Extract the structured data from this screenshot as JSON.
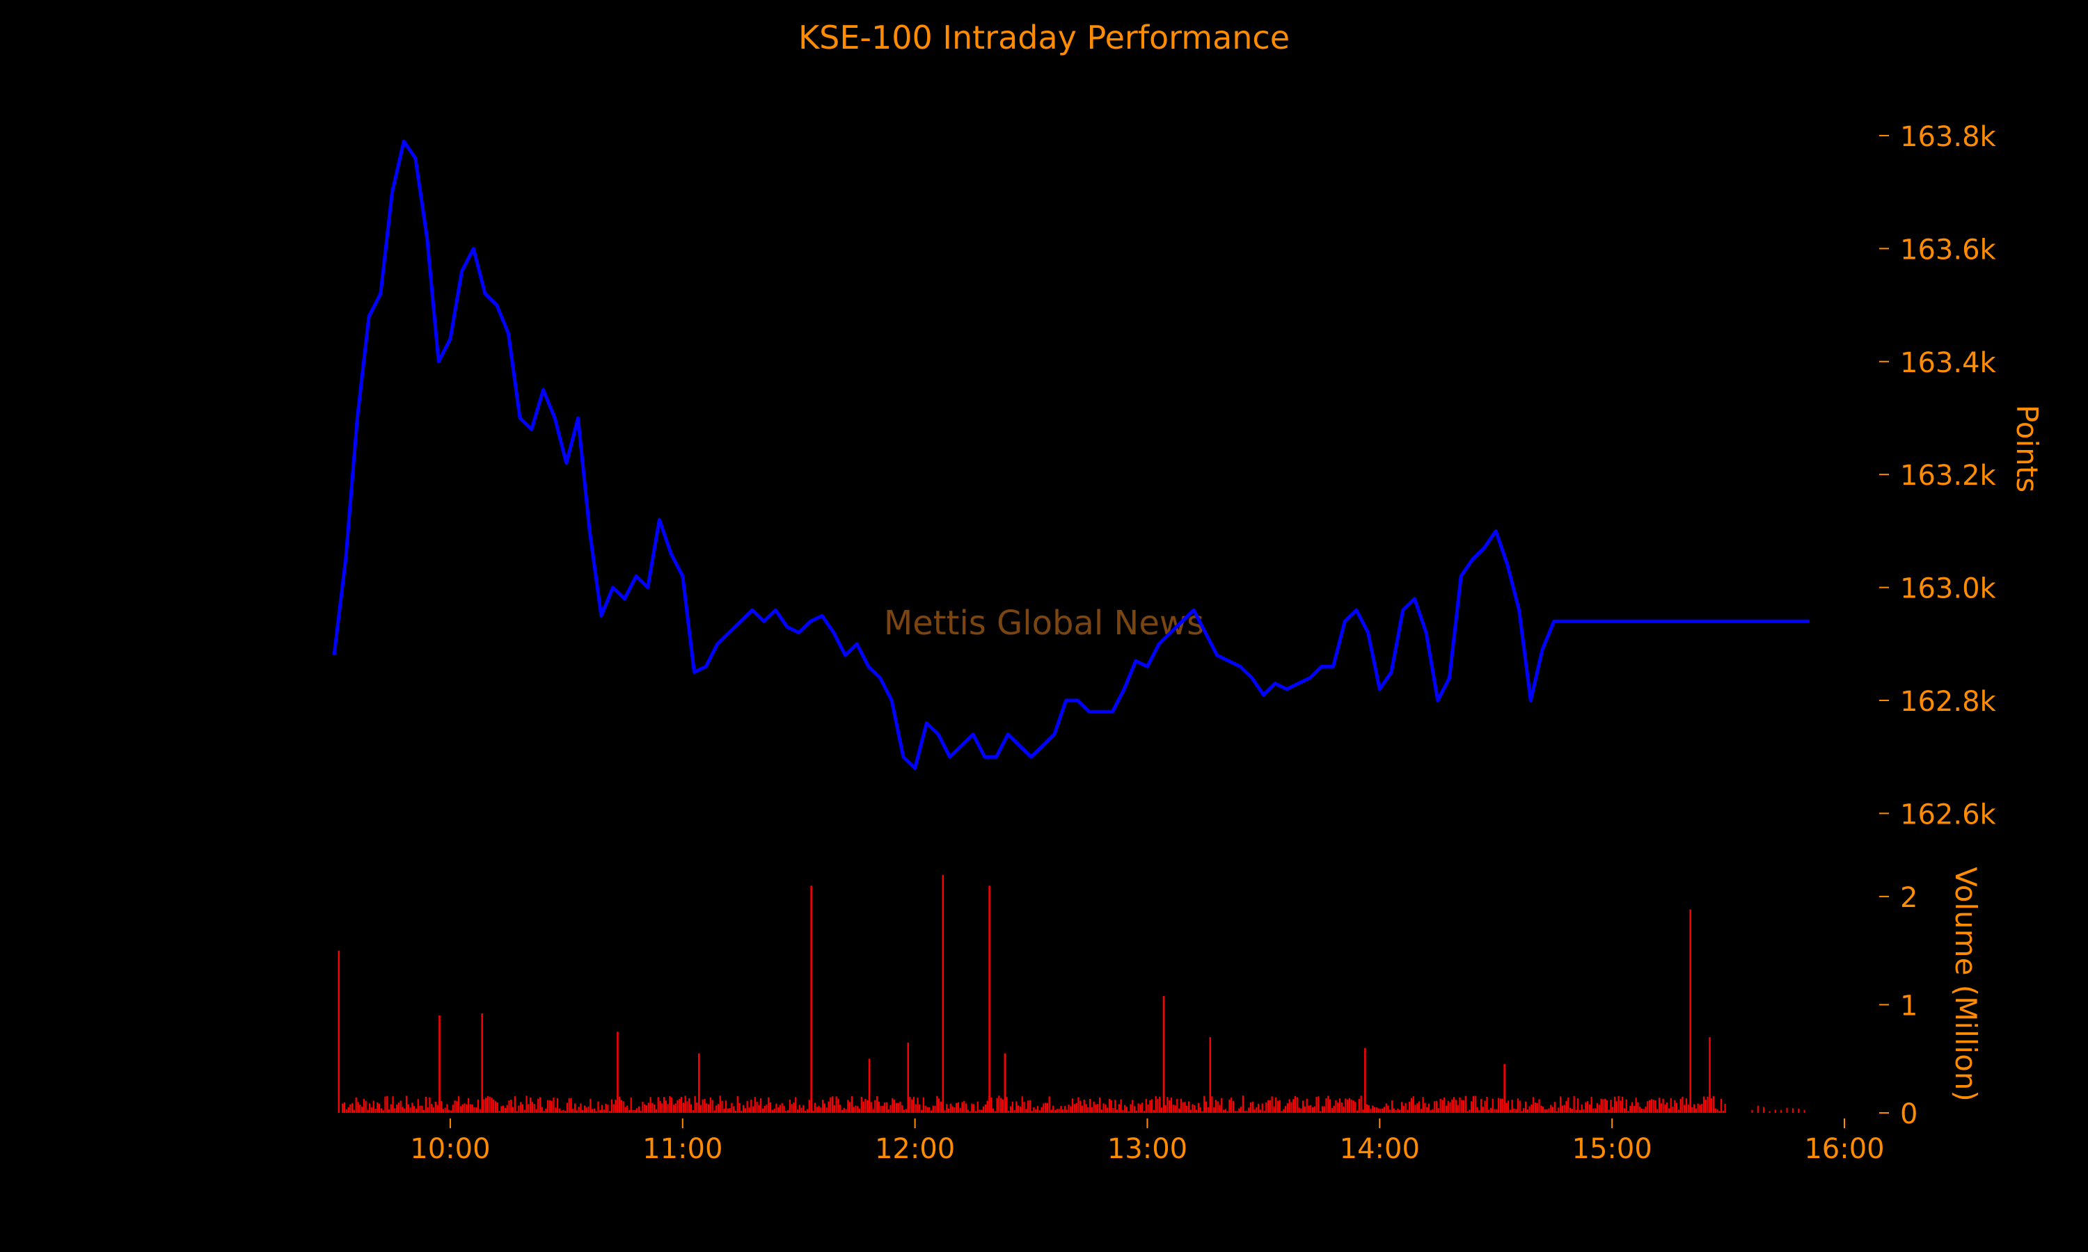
{
  "colors": {
    "background": "#000000",
    "text": "#FF8C00",
    "price_line": "#0000FF",
    "volume_bars": "#FF0000",
    "watermark": "#7A4510"
  },
  "watermark": "Mettis Global News",
  "chart_data": [
    {
      "type": "line",
      "title": "KSE-100 Intraday Performance",
      "ylabel": "Points",
      "xlabel": "",
      "ylim": [
        162550,
        163880
      ],
      "yticks": [
        162600,
        162800,
        163000,
        163200,
        163400,
        163600,
        163800
      ],
      "ytick_labels": [
        "162.6k",
        "162.8k",
        "163.0k",
        "163.2k",
        "163.4k",
        "163.6k",
        "163.8k"
      ],
      "y_axis_side": "right",
      "grid": false,
      "legend": "none",
      "series": [
        {
          "x": [
            "09:30",
            "09:33",
            "09:36",
            "09:39",
            "09:42",
            "09:45",
            "09:48",
            "09:51",
            "09:54",
            "09:57",
            "10:00",
            "10:03",
            "10:06",
            "10:09",
            "10:12",
            "10:15",
            "10:18",
            "10:21",
            "10:24",
            "10:27",
            "10:30",
            "10:33",
            "10:36",
            "10:39",
            "10:42",
            "10:45",
            "10:48",
            "10:51",
            "10:54",
            "10:57",
            "11:00",
            "11:03",
            "11:06",
            "11:09",
            "11:12",
            "11:15",
            "11:18",
            "11:21",
            "11:24",
            "11:27",
            "11:30",
            "11:33",
            "11:36",
            "11:39",
            "11:42",
            "11:45",
            "11:48",
            "11:51",
            "11:54",
            "11:57",
            "12:00",
            "12:03",
            "12:06",
            "12:09",
            "12:12",
            "12:15",
            "12:18",
            "12:21",
            "12:24",
            "12:27",
            "12:30",
            "12:33",
            "12:36",
            "12:39",
            "12:42",
            "12:45",
            "12:48",
            "12:51",
            "12:54",
            "12:57",
            "13:00",
            "13:03",
            "13:06",
            "13:09",
            "13:12",
            "13:15",
            "13:18",
            "13:21",
            "13:24",
            "13:27",
            "13:30",
            "13:33",
            "13:36",
            "13:39",
            "13:42",
            "13:45",
            "13:48",
            "13:51",
            "13:54",
            "13:57",
            "14:00",
            "14:03",
            "14:06",
            "14:09",
            "14:12",
            "14:15",
            "14:18",
            "14:21",
            "14:24",
            "14:27",
            "14:30",
            "14:33",
            "14:36",
            "14:39",
            "14:42",
            "14:45",
            "14:48",
            "14:51",
            "14:54",
            "14:57",
            "15:00",
            "15:03",
            "15:06",
            "15:09",
            "15:12",
            "15:15",
            "15:18",
            "15:21",
            "15:24",
            "15:27",
            "15:30",
            "15:33",
            "15:36",
            "15:39",
            "15:42",
            "15:45",
            "15:48",
            "15:51"
          ],
          "y": [
            162880,
            163050,
            163300,
            163480,
            163520,
            163700,
            163790,
            163760,
            163620,
            163400,
            163440,
            163560,
            163600,
            163520,
            163500,
            163450,
            163300,
            163280,
            163350,
            163300,
            163220,
            163300,
            163100,
            162950,
            163000,
            162980,
            163020,
            163000,
            163120,
            163060,
            163020,
            162850,
            162860,
            162900,
            162920,
            162940,
            162960,
            162940,
            162960,
            162930,
            162920,
            162940,
            162950,
            162920,
            162880,
            162900,
            162860,
            162840,
            162800,
            162700,
            162680,
            162760,
            162740,
            162700,
            162720,
            162740,
            162700,
            162700,
            162740,
            162720,
            162700,
            162720,
            162740,
            162800,
            162800,
            162780,
            162780,
            162780,
            162820,
            162870,
            162860,
            162900,
            162920,
            162940,
            162960,
            162920,
            162880,
            162870,
            162860,
            162840,
            162810,
            162830,
            162820,
            162830,
            162840,
            162860,
            162860,
            162940,
            162960,
            162920,
            162820,
            162850,
            162960,
            162980,
            162920,
            162800,
            162840,
            163020,
            163050,
            163070,
            163100,
            163040,
            162960,
            162800,
            162890,
            162940,
            162940,
            162940,
            162940,
            162940,
            162940,
            162940,
            162940,
            162940,
            162940,
            162940,
            162940,
            162940,
            162940,
            162940,
            162940,
            162940,
            162940,
            162940,
            162940,
            162940,
            162940,
            162940
          ]
        }
      ]
    },
    {
      "type": "bar",
      "ylabel": "Volume (Million)",
      "ylim": [
        0,
        2.25
      ],
      "yticks": [
        0,
        1,
        2
      ],
      "ytick_labels": [
        "0",
        "1",
        "2"
      ],
      "xlim": [
        "09:30",
        "16:00"
      ],
      "xtick_labels": [
        "10:00",
        "11:00",
        "12:00",
        "13:00",
        "14:00",
        "15:00",
        "16:00"
      ],
      "legend": "none",
      "spikes": [
        {
          "x": "09:31",
          "value": 1.5
        },
        {
          "x": "09:57",
          "value": 0.9
        },
        {
          "x": "10:08",
          "value": 0.92
        },
        {
          "x": "10:43",
          "value": 0.75
        },
        {
          "x": "11:04",
          "value": 0.55
        },
        {
          "x": "11:33",
          "value": 2.1
        },
        {
          "x": "11:48",
          "value": 0.5
        },
        {
          "x": "11:58",
          "value": 0.65
        },
        {
          "x": "12:07",
          "value": 2.2
        },
        {
          "x": "12:19",
          "value": 2.1
        },
        {
          "x": "12:23",
          "value": 0.55
        },
        {
          "x": "13:04",
          "value": 1.08
        },
        {
          "x": "13:16",
          "value": 0.7
        },
        {
          "x": "13:56",
          "value": 0.6
        },
        {
          "x": "14:32",
          "value": 0.45
        },
        {
          "x": "15:20",
          "value": 1.88
        },
        {
          "x": "15:25",
          "value": 0.7
        }
      ],
      "typical_level": 0.08
    }
  ]
}
